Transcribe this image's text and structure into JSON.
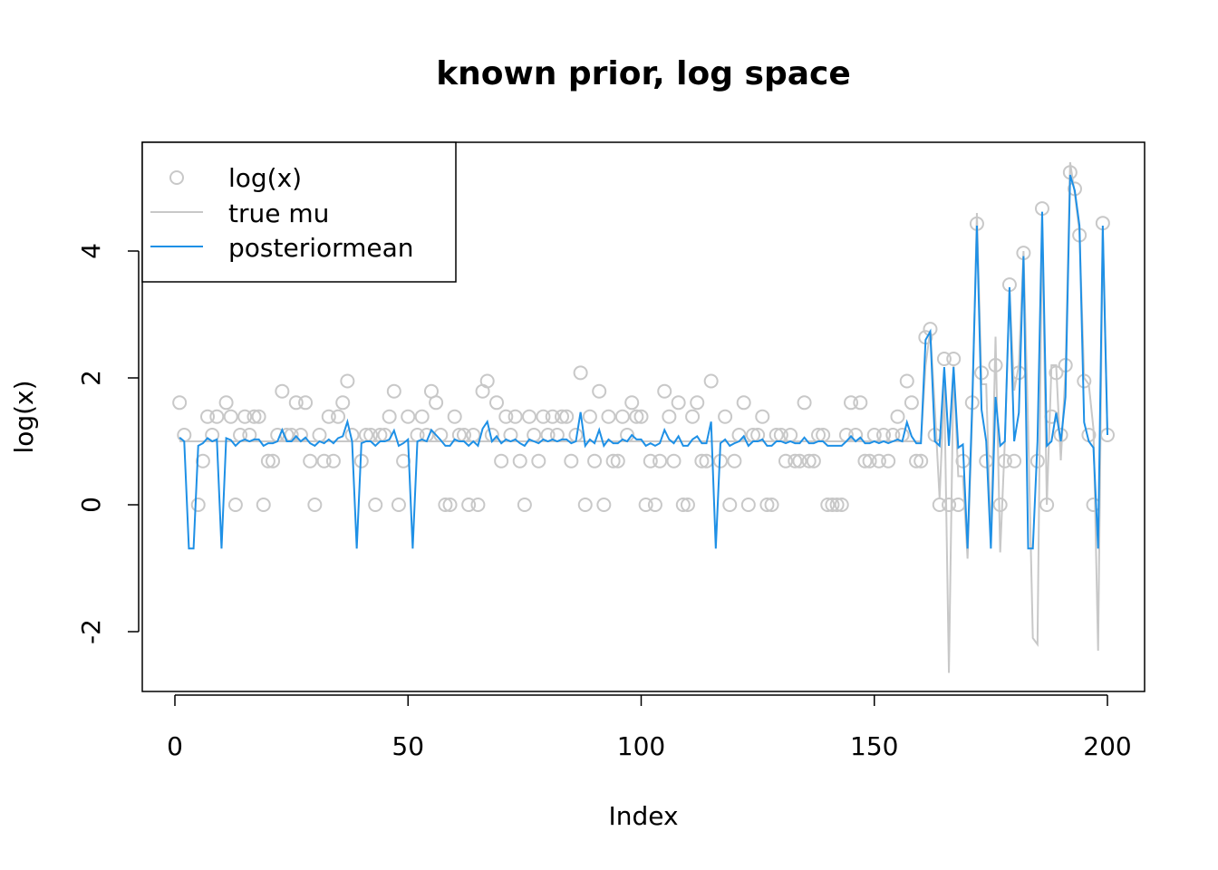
{
  "chart_data": {
    "type": "scatter",
    "title": "known prior, log space",
    "xlabel": "Index",
    "ylabel": "log(x)",
    "xlim": [
      0,
      200
    ],
    "ylim": [
      -2.7,
      5.5
    ],
    "x_ticks": [
      0,
      50,
      100,
      150,
      200
    ],
    "x_tick_labels": [
      "0",
      "50",
      "100",
      "150",
      "200"
    ],
    "y_ticks": [
      -2,
      0,
      2,
      4
    ],
    "y_tick_labels": [
      "-2",
      "0",
      "2",
      "4"
    ],
    "grid": false,
    "legend": {
      "placement": "top-left",
      "entries": [
        {
          "label": "log(x)",
          "kind": "point",
          "color": "#c8c8c8"
        },
        {
          "label": "true mu",
          "kind": "line",
          "color": "#c8c8c8"
        },
        {
          "label": "posteriormean",
          "kind": "line",
          "color": "#1e90e6"
        }
      ]
    },
    "colors": {
      "points": "#c8c8c8",
      "true_mu": "#c8c8c8",
      "posterior": "#1e90e6"
    },
    "log_x": [
      1.61,
      1.1,
      null,
      null,
      0,
      0.69,
      1.39,
      1.1,
      1.39,
      null,
      1.61,
      1.39,
      0,
      1.1,
      1.39,
      1.1,
      1.39,
      1.39,
      0,
      0.69,
      0.69,
      1.1,
      1.79,
      1.1,
      1.1,
      1.61,
      1.1,
      1.61,
      0.69,
      0,
      1.1,
      0.69,
      1.39,
      0.69,
      1.39,
      1.61,
      1.95,
      1.1,
      null,
      0.69,
      1.1,
      1.1,
      0,
      1.1,
      1.1,
      1.39,
      1.79,
      0,
      0.69,
      1.39,
      null,
      1.1,
      1.39,
      1.1,
      1.79,
      1.61,
      1.1,
      0,
      0,
      1.39,
      1.1,
      1.1,
      0,
      1.1,
      0,
      1.79,
      1.95,
      1.1,
      1.61,
      0.69,
      1.39,
      1.1,
      1.39,
      0.69,
      0,
      1.39,
      1.1,
      0.69,
      1.39,
      1.1,
      1.39,
      1.1,
      1.39,
      1.39,
      0.69,
      1.1,
      2.08,
      0,
      1.39,
      0.69,
      1.79,
      0,
      1.39,
      0.69,
      0.69,
      1.39,
      1.1,
      1.61,
      1.39,
      1.39,
      0,
      0.69,
      0,
      0.69,
      1.79,
      1.39,
      0.69,
      1.61,
      0,
      0,
      1.39,
      1.61,
      0.69,
      0.69,
      1.95,
      null,
      0.69,
      1.39,
      0,
      0.69,
      1.1,
      1.61,
      0,
      1.1,
      1.1,
      1.39,
      0,
      0,
      1.1,
      1.1,
      0.69,
      1.1,
      0.69,
      0.69,
      1.61,
      0.69,
      0.69,
      1.1,
      1.1,
      0,
      0,
      0,
      0,
      1.1,
      1.61,
      1.1,
      1.61,
      0.69,
      0.69,
      1.1,
      0.69,
      1.1,
      0.69,
      1.1,
      1.39,
      1.1,
      1.95,
      1.61,
      0.69,
      0.69,
      2.64,
      2.77,
      1.1,
      0,
      2.3,
      0,
      2.3,
      0,
      0.69,
      null,
      1.61,
      4.43,
      2.08,
      0.69,
      null,
      2.2,
      0,
      0.69,
      3.47,
      0.69,
      2.08,
      3.97,
      null,
      null,
      0.69,
      4.67,
      0,
      1.39,
      2.08,
      1.1,
      2.2,
      5.24,
      4.98,
      4.25,
      1.95,
      1.1,
      0,
      null,
      4.44,
      1.1
    ],
    "posterior_mean": [
      1.06,
      1.0,
      -0.69,
      -0.69,
      0.93,
      0.97,
      1.05,
      1.0,
      1.03,
      -0.69,
      1.05,
      1.02,
      0.93,
      1.0,
      1.03,
      1.0,
      1.03,
      1.03,
      0.93,
      0.97,
      0.97,
      1.0,
      1.18,
      1.0,
      1.0,
      1.08,
      1.0,
      1.06,
      0.97,
      0.93,
      1.0,
      0.97,
      1.03,
      0.97,
      1.05,
      1.08,
      1.31,
      1.0,
      -0.69,
      0.97,
      1.0,
      1.0,
      0.93,
      1.0,
      1.0,
      1.03,
      1.17,
      0.93,
      0.97,
      1.03,
      -0.69,
      1.0,
      1.03,
      1.0,
      1.18,
      1.1,
      1.02,
      0.93,
      0.93,
      1.03,
      1.0,
      1.0,
      0.93,
      1.0,
      0.93,
      1.2,
      1.31,
      1.0,
      1.08,
      0.97,
      1.03,
      1.0,
      1.03,
      0.97,
      0.93,
      1.03,
      1.0,
      0.97,
      1.03,
      1.0,
      1.03,
      1.0,
      1.03,
      1.03,
      0.97,
      1.0,
      1.46,
      0.93,
      1.03,
      0.97,
      1.18,
      0.93,
      1.03,
      0.97,
      0.97,
      1.03,
      1.0,
      1.1,
      1.03,
      1.03,
      0.93,
      0.97,
      0.93,
      0.97,
      1.18,
      1.03,
      0.97,
      1.08,
      0.93,
      0.93,
      1.03,
      1.08,
      0.97,
      0.97,
      1.31,
      -0.69,
      0.97,
      1.03,
      0.93,
      0.97,
      1.0,
      1.08,
      0.93,
      1.0,
      1.0,
      1.03,
      0.93,
      0.93,
      1.0,
      1.0,
      0.97,
      1.0,
      0.97,
      0.97,
      1.06,
      0.97,
      0.97,
      1.0,
      1.0,
      0.93,
      0.93,
      0.93,
      0.93,
      1.0,
      1.08,
      1.0,
      1.06,
      0.97,
      0.97,
      1.0,
      0.97,
      1.0,
      0.97,
      1.0,
      1.03,
      1.0,
      1.3,
      1.08,
      0.97,
      0.97,
      2.6,
      2.73,
      1.0,
      0.93,
      2.17,
      0.93,
      2.17,
      0.9,
      0.95,
      -0.69,
      1.6,
      4.4,
      1.5,
      1.0,
      -0.69,
      1.7,
      0.93,
      1.0,
      3.43,
      1.0,
      1.45,
      3.92,
      -0.69,
      -0.69,
      1.0,
      4.62,
      0.93,
      1.0,
      1.45,
      1.0,
      1.7,
      5.2,
      4.95,
      4.4,
      1.3,
      1.0,
      0.9,
      -0.69,
      4.4,
      1.1
    ],
    "true_mu": {
      "constant_through_index": 160,
      "constant_value": 1.0,
      "tail_from_index": 161,
      "tail": [
        2.2,
        2.75,
        1.5,
        0.1,
        1.9,
        -2.65,
        2.2,
        0.45,
        0.45,
        -0.85,
        1.4,
        4.6,
        1.9,
        1.9,
        -0.6,
        2.65,
        -0.75,
        1.0,
        3.4,
        1.8,
        2.2,
        4.0,
        1.2,
        -2.1,
        -2.2,
        4.5,
        0.0,
        2.2,
        2.2,
        0.7,
        2.1,
        5.4,
        4.9,
        4.3,
        2.0,
        1.9,
        1.2,
        -2.3,
        4.3,
        1.1
      ]
    }
  }
}
